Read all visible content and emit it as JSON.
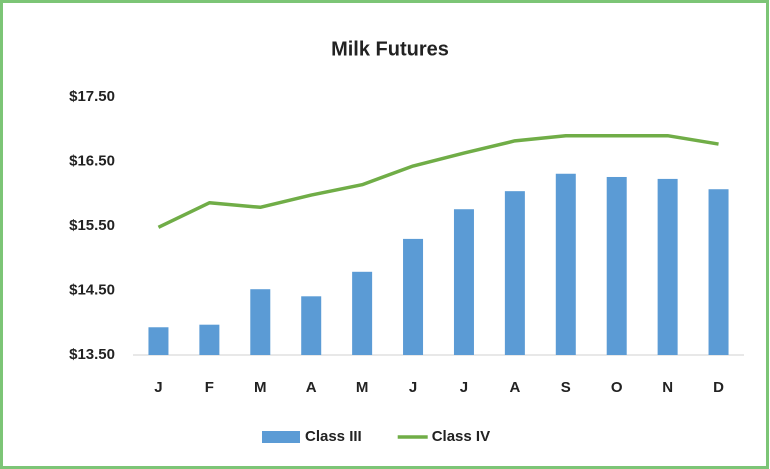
{
  "chart_data": {
    "type": "bar",
    "title": "Milk Futures",
    "categories": [
      "J",
      "F",
      "M",
      "A",
      "M",
      "J",
      "J",
      "A",
      "S",
      "O",
      "N",
      "D"
    ],
    "series": [
      {
        "name": "Class III",
        "type": "bar",
        "color": "#5b9bd5",
        "values": [
          13.93,
          13.97,
          14.52,
          14.41,
          14.79,
          15.3,
          15.76,
          16.04,
          16.31,
          16.26,
          16.23,
          16.07
        ]
      },
      {
        "name": "Class IV",
        "type": "line",
        "color": "#70ad47",
        "values": [
          15.48,
          15.86,
          15.79,
          15.98,
          16.14,
          16.43,
          16.63,
          16.82,
          16.9,
          16.9,
          16.9,
          16.77
        ]
      }
    ],
    "ylim": [
      13.5,
      17.5
    ],
    "yticks": [
      {
        "value": 13.5,
        "label": "$13.50"
      },
      {
        "value": 14.5,
        "label": "$14.50"
      },
      {
        "value": 15.5,
        "label": "$15.50"
      },
      {
        "value": 16.5,
        "label": "$16.50"
      },
      {
        "value": 17.5,
        "label": "$17.50"
      }
    ],
    "grid": false,
    "legend": "bottom"
  }
}
